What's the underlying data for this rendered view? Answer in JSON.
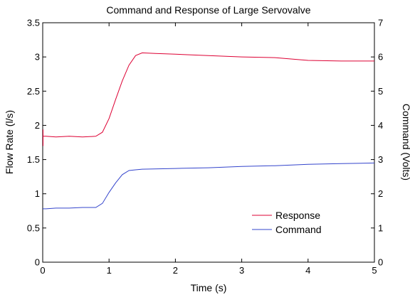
{
  "chart_data": {
    "type": "line",
    "title": "Command and Response of Large Servovalve",
    "xlabel": "Time (s)",
    "ylabel_left": "Flow Rate (l/s)",
    "ylabel_right": "Command (Volts)",
    "xlim": [
      0,
      5
    ],
    "ylim_left": [
      0,
      3.5
    ],
    "ylim_right": [
      0,
      7
    ],
    "xticks": [
      "0",
      "1",
      "2",
      "3",
      "4",
      "5"
    ],
    "yticks_left": [
      "0",
      "0.5",
      "1",
      "1.5",
      "2",
      "2.5",
      "3",
      "3.5"
    ],
    "yticks_right": [
      "0",
      "1",
      "2",
      "3",
      "4",
      "5",
      "6",
      "7"
    ],
    "grid": false,
    "legend_position": "bottom-right",
    "colors": {
      "response": "#dd0033",
      "command": "#3344cc"
    },
    "series": [
      {
        "name": "Response",
        "axis": "left",
        "x": [
          0,
          0.05,
          0.2,
          0.4,
          0.6,
          0.8,
          0.9,
          1.0,
          1.1,
          1.2,
          1.3,
          1.4,
          1.5,
          1.7,
          2.0,
          2.5,
          3.0,
          3.5,
          4.0,
          4.5,
          5.0
        ],
        "y": [
          1.84,
          1.84,
          1.83,
          1.84,
          1.83,
          1.84,
          1.9,
          2.1,
          2.38,
          2.65,
          2.88,
          3.02,
          3.06,
          3.05,
          3.04,
          3.02,
          3.0,
          2.99,
          2.95,
          2.94,
          2.94
        ]
      },
      {
        "name": "Command",
        "axis": "left",
        "x": [
          0,
          0.05,
          0.2,
          0.4,
          0.6,
          0.8,
          0.9,
          1.0,
          1.1,
          1.2,
          1.3,
          1.4,
          1.5,
          2.0,
          2.5,
          3.0,
          3.5,
          4.0,
          4.5,
          5.0
        ],
        "y": [
          0.78,
          0.78,
          0.79,
          0.79,
          0.8,
          0.8,
          0.86,
          1.02,
          1.16,
          1.28,
          1.34,
          1.35,
          1.36,
          1.37,
          1.38,
          1.4,
          1.41,
          1.43,
          1.44,
          1.45
        ]
      }
    ]
  }
}
